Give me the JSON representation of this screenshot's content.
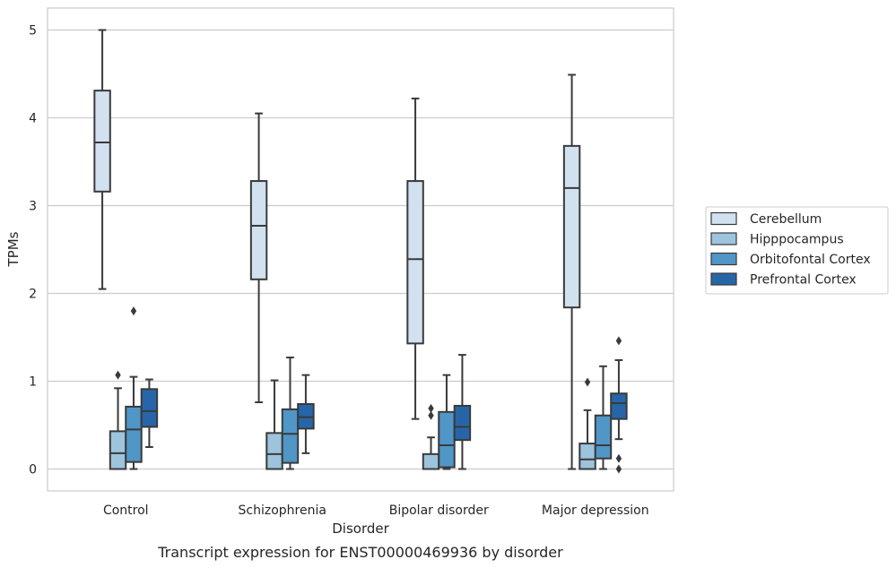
{
  "chart_data": {
    "type": "boxplot",
    "title": "Transcript expression for ENST00000469936 by disorder",
    "xlabel": "Disorder",
    "ylabel": "TPMs",
    "ylim": [
      -0.25,
      5.25
    ],
    "yticks": [
      0,
      1,
      2,
      3,
      4,
      5
    ],
    "grid": "horizontal",
    "legend_position": "right",
    "categories": [
      "Control",
      "Schizophrenia",
      "Bipolar disorder",
      "Major depression"
    ],
    "series": [
      {
        "name": "Cerebellum",
        "color": "#d1e1f0",
        "boxes": [
          {
            "whislo": 2.05,
            "q1": 3.16,
            "med": 3.72,
            "q3": 4.31,
            "whishi": 5.0,
            "fliers": []
          },
          {
            "whislo": 0.76,
            "q1": 2.16,
            "med": 2.77,
            "q3": 3.28,
            "whishi": 4.05,
            "fliers": []
          },
          {
            "whislo": 0.57,
            "q1": 1.43,
            "med": 2.39,
            "q3": 3.28,
            "whishi": 4.22,
            "fliers": []
          },
          {
            "whislo": 0.0,
            "q1": 1.84,
            "med": 3.2,
            "q3": 3.68,
            "whishi": 4.49,
            "fliers": []
          }
        ]
      },
      {
        "name": "Hipppocampus",
        "color": "#9dc4dd",
        "boxes": [
          {
            "whislo": 0.0,
            "q1": 0.0,
            "med": 0.18,
            "q3": 0.43,
            "whishi": 0.92,
            "fliers": [
              1.07
            ]
          },
          {
            "whislo": 0.0,
            "q1": 0.0,
            "med": 0.17,
            "q3": 0.41,
            "whishi": 1.01,
            "fliers": []
          },
          {
            "whislo": 0.0,
            "q1": 0.0,
            "med": 0.0,
            "q3": 0.17,
            "whishi": 0.36,
            "fliers": [
              0.61,
              0.69
            ]
          },
          {
            "whislo": 0.0,
            "q1": 0.0,
            "med": 0.11,
            "q3": 0.29,
            "whishi": 0.67,
            "fliers": [
              0.99
            ]
          }
        ]
      },
      {
        "name": "Orbitofontal Cortex",
        "color": "#5096c7",
        "boxes": [
          {
            "whislo": 0.0,
            "q1": 0.08,
            "med": 0.45,
            "q3": 0.71,
            "whishi": 1.05,
            "fliers": [
              1.8
            ]
          },
          {
            "whislo": 0.0,
            "q1": 0.07,
            "med": 0.4,
            "q3": 0.68,
            "whishi": 1.27,
            "fliers": []
          },
          {
            "whislo": 0.0,
            "q1": 0.02,
            "med": 0.27,
            "q3": 0.65,
            "whishi": 1.07,
            "fliers": []
          },
          {
            "whislo": 0.0,
            "q1": 0.12,
            "med": 0.27,
            "q3": 0.61,
            "whishi": 1.17,
            "fliers": []
          }
        ]
      },
      {
        "name": "Prefrontal Cortex",
        "color": "#2666a8",
        "boxes": [
          {
            "whislo": 0.25,
            "q1": 0.48,
            "med": 0.66,
            "q3": 0.91,
            "whishi": 1.02,
            "fliers": []
          },
          {
            "whislo": 0.18,
            "q1": 0.46,
            "med": 0.59,
            "q3": 0.74,
            "whishi": 1.07,
            "fliers": []
          },
          {
            "whislo": 0.0,
            "q1": 0.33,
            "med": 0.48,
            "q3": 0.72,
            "whishi": 1.3,
            "fliers": []
          },
          {
            "whislo": 0.34,
            "q1": 0.57,
            "med": 0.75,
            "q3": 0.86,
            "whishi": 1.24,
            "fliers": [
              0.0,
              0.12,
              1.46
            ]
          }
        ]
      }
    ]
  }
}
